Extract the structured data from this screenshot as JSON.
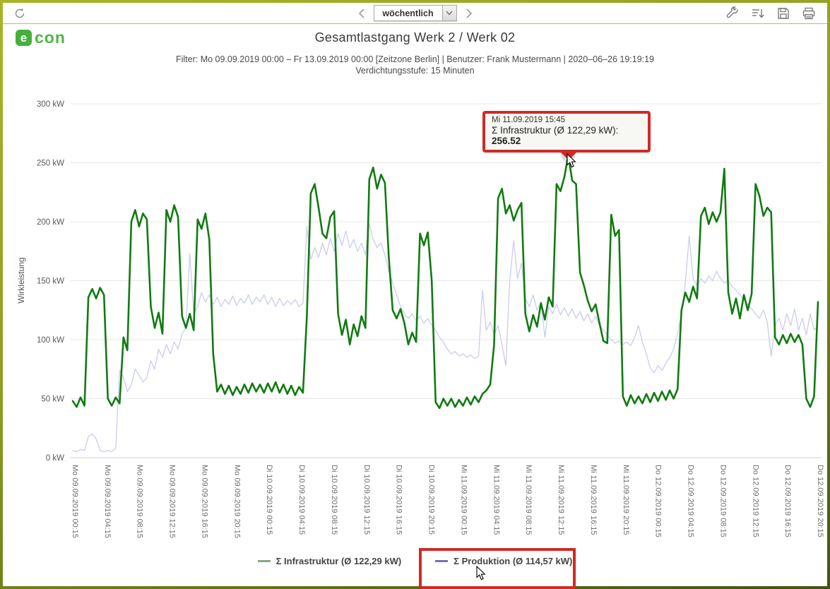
{
  "toolbar": {
    "refresh": "refresh",
    "prev": "previous period",
    "next": "next period",
    "period_selector": {
      "value": "wöchentlich"
    },
    "icons": [
      "tools",
      "export",
      "save",
      "print"
    ]
  },
  "header": {
    "logo_badge": "e",
    "logo_text": "con",
    "title": "Gesamtlastgang Werk 2 / Werk 02",
    "filter_line": "Filter: Mo 09.09.2019 00:00 – Fr 13.09.2019 00:00 [Zeitzone Berlin] | Benutzer: Frank Mustermann | 2020–06–26 19:19:19",
    "filter_line2": "Verdichtungsstufe: 15 Minuten"
  },
  "chart_data": {
    "type": "line",
    "ylabel": "Wirkleistung",
    "ylim": [
      0,
      300
    ],
    "y_ticks": [
      "0 kW",
      "50 kW",
      "100 kW",
      "150 kW",
      "200 kW",
      "250 kW",
      "300 kW"
    ],
    "x_tick_labels": [
      "Mo 09.09.2019 00:15",
      "Mo 09.09.2019 04:15",
      "Mo 09.09.2019 08:15",
      "Mo 09.09.2019 12:15",
      "Mo 09.09.2019 16:15",
      "Mo 09.09.2019 20:15",
      "Di 10.09.2019 00:15",
      "Di 10.09.2019 04:15",
      "Di 10.09.2019 08:15",
      "Di 10.09.2019 12:15",
      "Di 10.09.2019 16:15",
      "Di 10.09.2019 20:15",
      "Mi 11.09.2019 00:15",
      "Mi 11.09.2019 04:15",
      "Mi 11.09.2019 08:15",
      "Mi 11.09.2019 12:15",
      "Mi 11.09.2019 16:15",
      "Mi 11.09.2019 20:15",
      "Do 12.09.2019 00:15",
      "Do 12.09.2019 04:15",
      "Do 12.09.2019 08:15",
      "Do 12.09.2019 12:15",
      "Do 12.09.2019 16:15",
      "Do 12.09.2019 20:15"
    ],
    "x_start": "Mo 09.09.2019 00:15",
    "x_interval_minutes": 30,
    "grid": true,
    "legend_position": "bottom",
    "series": [
      {
        "name": "Σ Infrastruktur (Ø 122,29 kW)",
        "color": "#117a11",
        "width": 2.6,
        "values": [
          48,
          43,
          51,
          44,
          136,
          143,
          135,
          144,
          138,
          50,
          44,
          51,
          46,
          102,
          91,
          200,
          210,
          196,
          207,
          202,
          128,
          110,
          123,
          105,
          210,
          200,
          214,
          204,
          120,
          110,
          122,
          108,
          202,
          194,
          207,
          185,
          88,
          56,
          62,
          54,
          61,
          53,
          60,
          54,
          62,
          55,
          63,
          56,
          62,
          55,
          63,
          56,
          64,
          55,
          62,
          54,
          61,
          53,
          60,
          55,
          120,
          224,
          232,
          212,
          190,
          186,
          204,
          209,
          122,
          104,
          117,
          96,
          113,
          103,
          120,
          110,
          236,
          246,
          228,
          240,
          233,
          170,
          125,
          118,
          126,
          114,
          96,
          106,
          98,
          190,
          180,
          191,
          150,
          47,
          42,
          50,
          44,
          50,
          43,
          49,
          44,
          51,
          45,
          52,
          47,
          54,
          57,
          62,
          96,
          220,
          228,
          207,
          214,
          201,
          210,
          216,
          122,
          107,
          121,
          111,
          131,
          117,
          136,
          128,
          232,
          226,
          238,
          256.52,
          235,
          232,
          157,
          146,
          133,
          124,
          130,
          114,
          99,
          97,
          206,
          188,
          193,
          52,
          44,
          53,
          46,
          52,
          46,
          54,
          47,
          55,
          48,
          56,
          49,
          57,
          50,
          58,
          125,
          140,
          132,
          145,
          135,
          205,
          212,
          198,
          208,
          200,
          208,
          245,
          140,
          122,
          135,
          118,
          138,
          125,
          139,
          232,
          222,
          205,
          212,
          208,
          102,
          96,
          104,
          97,
          105,
          98,
          104,
          96,
          50,
          43,
          52,
          132
        ]
      },
      {
        "name": "Σ Produktion (Ø 114,57 kW)",
        "color": "#c9cdec",
        "width": 1.3,
        "values": [
          6,
          5,
          7,
          6,
          18,
          20,
          16,
          6,
          5,
          6,
          5,
          8,
          74,
          68,
          56,
          62,
          75,
          70,
          64,
          68,
          82,
          75,
          92,
          85,
          96,
          88,
          98,
          92,
          105,
          110,
          173,
          122,
          128,
          140,
          132,
          138,
          130,
          136,
          128,
          134,
          130,
          137,
          129,
          135,
          131,
          138,
          130,
          136,
          132,
          138,
          130,
          136,
          128,
          135,
          129,
          133,
          130,
          134,
          128,
          131,
          196,
          168,
          178,
          170,
          182,
          172,
          186,
          175,
          190,
          180,
          192,
          178,
          185,
          175,
          182,
          172,
          198,
          185,
          178,
          182,
          172,
          158,
          148,
          138,
          128,
          122,
          118,
          122,
          116,
          120,
          114,
          118,
          112,
          108,
          102,
          98,
          92,
          88,
          90,
          86,
          88,
          85,
          87,
          84,
          86,
          142,
          108,
          115,
          104,
          112,
          96,
          78,
          150,
          184,
          152,
          165,
          135,
          128,
          138,
          125,
          132,
          102,
          128,
          122,
          130,
          121,
          127,
          120,
          126,
          118,
          124,
          116,
          122,
          114,
          120,
          112,
          108,
          104,
          100,
          97,
          99,
          96,
          98,
          95,
          102,
          112,
          98,
          88,
          76,
          72,
          78,
          74,
          80,
          85,
          92,
          105,
          122,
          148,
          188,
          152,
          146,
          152,
          148,
          154,
          150,
          158,
          152,
          148,
          150,
          145,
          142,
          138,
          134,
          130,
          126,
          122,
          118,
          125,
          115,
          86,
          112,
          118,
          108,
          122,
          112,
          126,
          108,
          118,
          104,
          122,
          108,
          112
        ]
      }
    ],
    "highlight_point": {
      "series": 0,
      "index": 127,
      "value": 256.52,
      "time": "Mi 11.09.2019 15:45"
    }
  },
  "tooltip": {
    "line1": "Mi 11.09.2019 15:45",
    "line2_prefix": "Σ Infrastruktur (Ø 122,29 kW): ",
    "value": "256.52"
  },
  "legend": {
    "items": [
      {
        "label": "Σ Infrastruktur (Ø 122,29 kW)",
        "color": "#85a885"
      },
      {
        "label": "Σ Produktion (Ø 114,57 kW)",
        "color": "#7a70b5"
      }
    ]
  },
  "annotations": {
    "highlight_color": "#cf2b24"
  }
}
